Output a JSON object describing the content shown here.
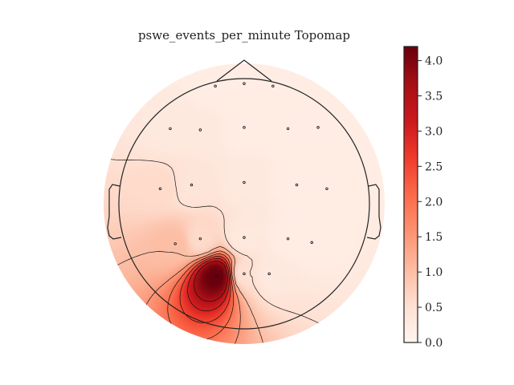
{
  "chart_data": {
    "type": "heatmap",
    "subtype": "topomap",
    "title": "pswe_events_per_minute Topomap",
    "colormap": "Reds",
    "colormap_stops": [
      "#fff5f0",
      "#fee0d2",
      "#fcbba1",
      "#fc9272",
      "#fb6a4a",
      "#ef3b2c",
      "#cb181d",
      "#a50f15",
      "#67000d"
    ],
    "colorbar": {
      "vmin": 0.0,
      "vmax": 4.2,
      "ticks": [
        0.0,
        0.5,
        1.0,
        1.5,
        2.0,
        2.5,
        3.0,
        3.5,
        4.0
      ],
      "tick_labels": [
        "0.0",
        "0.5",
        "1.0",
        "1.5",
        "2.0",
        "2.5",
        "3.0",
        "3.5",
        "4.0"
      ]
    },
    "sensors": [
      {
        "x": -0.23,
        "y": 0.94,
        "value": 0.2
      },
      {
        "x": 0.0,
        "y": 0.96,
        "value": 0.2
      },
      {
        "x": 0.23,
        "y": 0.94,
        "value": 0.2
      },
      {
        "x": -0.59,
        "y": 0.6,
        "value": 0.3
      },
      {
        "x": -0.35,
        "y": 0.59,
        "value": 0.3
      },
      {
        "x": 0.0,
        "y": 0.61,
        "value": 0.2
      },
      {
        "x": 0.35,
        "y": 0.6,
        "value": 0.2
      },
      {
        "x": 0.59,
        "y": 0.61,
        "value": 0.2
      },
      {
        "x": -0.67,
        "y": 0.12,
        "value": 0.6
      },
      {
        "x": -0.42,
        "y": 0.15,
        "value": 0.4
      },
      {
        "x": 0.0,
        "y": 0.17,
        "value": 0.3
      },
      {
        "x": 0.42,
        "y": 0.15,
        "value": 0.2
      },
      {
        "x": 0.66,
        "y": 0.12,
        "value": 0.2
      },
      {
        "x": -0.55,
        "y": -0.32,
        "value": 1.0
      },
      {
        "x": -0.35,
        "y": -0.28,
        "value": 0.6
      },
      {
        "x": 0.0,
        "y": -0.27,
        "value": 0.3
      },
      {
        "x": 0.35,
        "y": -0.28,
        "value": 0.2
      },
      {
        "x": 0.54,
        "y": -0.31,
        "value": 0.2
      },
      {
        "x": -0.22,
        "y": -0.58,
        "value": 4.2
      },
      {
        "x": 0.0,
        "y": -0.56,
        "value": 0.5
      },
      {
        "x": 0.2,
        "y": -0.56,
        "value": 0.3
      }
    ]
  }
}
